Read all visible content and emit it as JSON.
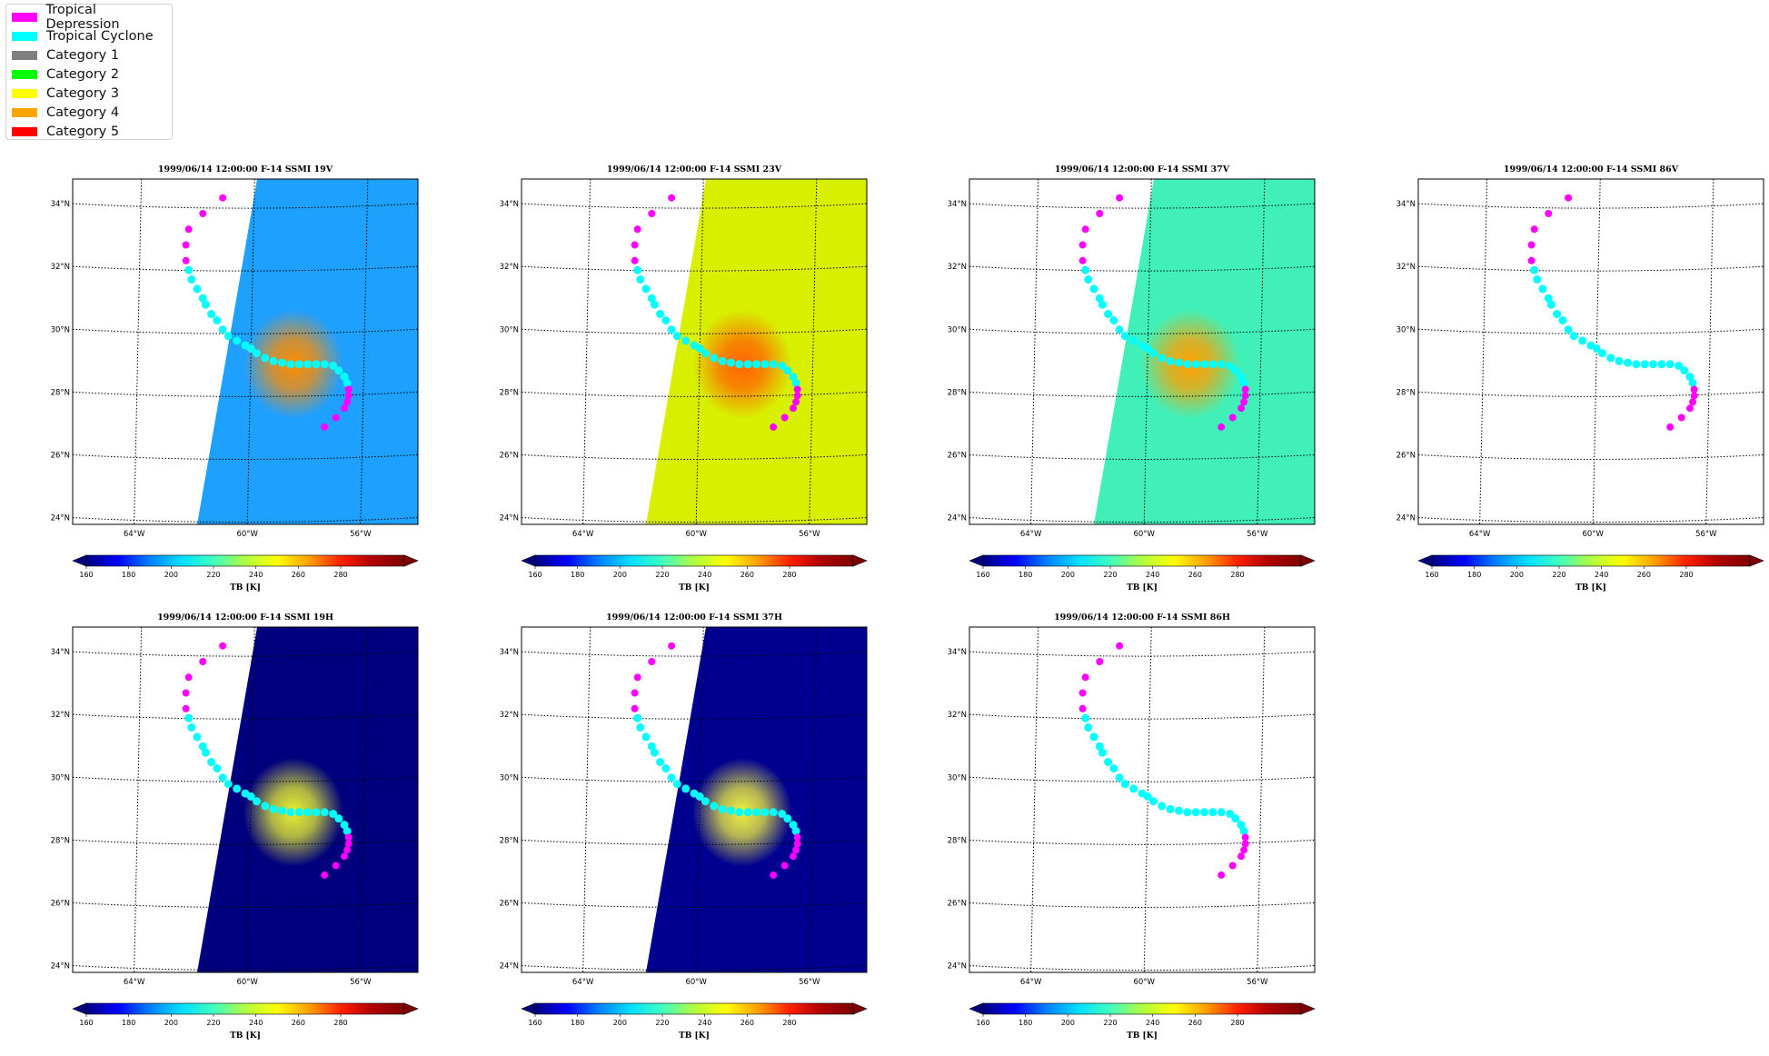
{
  "legend": {
    "items": [
      {
        "label": "Tropical Depression",
        "color": "#ff00ff"
      },
      {
        "label": "Tropical Cyclone",
        "color": "#00ffff"
      },
      {
        "label": "Category 1",
        "color": "#808080"
      },
      {
        "label": "Category 2",
        "color": "#00ff00"
      },
      {
        "label": "Category 3",
        "color": "#ffff00"
      },
      {
        "label": "Category 4",
        "color": "#ffa500"
      },
      {
        "label": "Category 5",
        "color": "#ff0000"
      }
    ]
  },
  "lon_ticks": [
    "64°W",
    "60°W",
    "56°W"
  ],
  "lat_ticks": [
    "34°N",
    "32°N",
    "30°N",
    "28°N",
    "26°N",
    "24°N"
  ],
  "colorbar": {
    "ticks": [
      "160",
      "180",
      "200",
      "220",
      "240",
      "260",
      "280"
    ],
    "label": "TB [K]"
  },
  "panels": [
    {
      "title": "1999/06/14 12:00:00  F-14 SSMI 19V",
      "bg": "#1ea0ff",
      "storm": "#ff8c00",
      "swath": true
    },
    {
      "title": "1999/06/14 12:00:00  F-14 SSMI 23V",
      "bg": "#d8f000",
      "storm": "#ff6400",
      "swath": true
    },
    {
      "title": "1999/06/14 12:00:00  F-14 SSMI 37V",
      "bg": "#40f0b8",
      "storm": "#ffa000",
      "swath": true
    },
    {
      "title": "1999/06/14 12:00:00  F-14 SSMI 86V",
      "bg": "",
      "storm": "",
      "swath": false
    },
    {
      "title": "1999/06/14 12:00:00  F-14 SSMI 19H",
      "bg": "#00007e",
      "storm": "#e8f030",
      "swath": true
    },
    {
      "title": "1999/06/14 12:00:00  F-14 SSMI 37H",
      "bg": "#000090",
      "storm": "#f0f040",
      "swath": true
    },
    {
      "title": "1999/06/14 12:00:00  F-14 SSMI 86H",
      "bg": "",
      "storm": "",
      "swath": false
    }
  ],
  "chart_data": {
    "type": "scatter",
    "track_lon_lat": [
      [
        -61.0,
        34.3
      ],
      [
        -61.7,
        33.8
      ],
      [
        -62.2,
        33.3
      ],
      [
        -62.3,
        32.8
      ],
      [
        -62.3,
        32.3
      ],
      [
        -62.2,
        32.0
      ],
      [
        -62.1,
        31.7
      ],
      [
        -61.9,
        31.4
      ],
      [
        -61.7,
        31.1
      ],
      [
        -61.6,
        30.9
      ],
      [
        -61.4,
        30.6
      ],
      [
        -61.2,
        30.4
      ],
      [
        -61.0,
        30.1
      ],
      [
        -60.8,
        29.9
      ],
      [
        -60.5,
        29.75
      ],
      [
        -60.2,
        29.6
      ],
      [
        -60.0,
        29.5
      ],
      [
        -59.8,
        29.35
      ],
      [
        -59.5,
        29.2
      ],
      [
        -59.2,
        29.1
      ],
      [
        -58.9,
        29.05
      ],
      [
        -58.6,
        29.0
      ],
      [
        -58.3,
        29.0
      ],
      [
        -58.0,
        29.0
      ],
      [
        -57.7,
        29.0
      ],
      [
        -57.4,
        29.0
      ],
      [
        -57.1,
        28.95
      ],
      [
        -56.9,
        28.8
      ],
      [
        -56.7,
        28.6
      ],
      [
        -56.6,
        28.4
      ],
      [
        -56.55,
        28.2
      ],
      [
        -56.55,
        28.0
      ],
      [
        -56.6,
        27.8
      ],
      [
        -56.7,
        27.6
      ],
      [
        -57.0,
        27.3
      ],
      [
        -57.4,
        27.0
      ]
    ]
  }
}
